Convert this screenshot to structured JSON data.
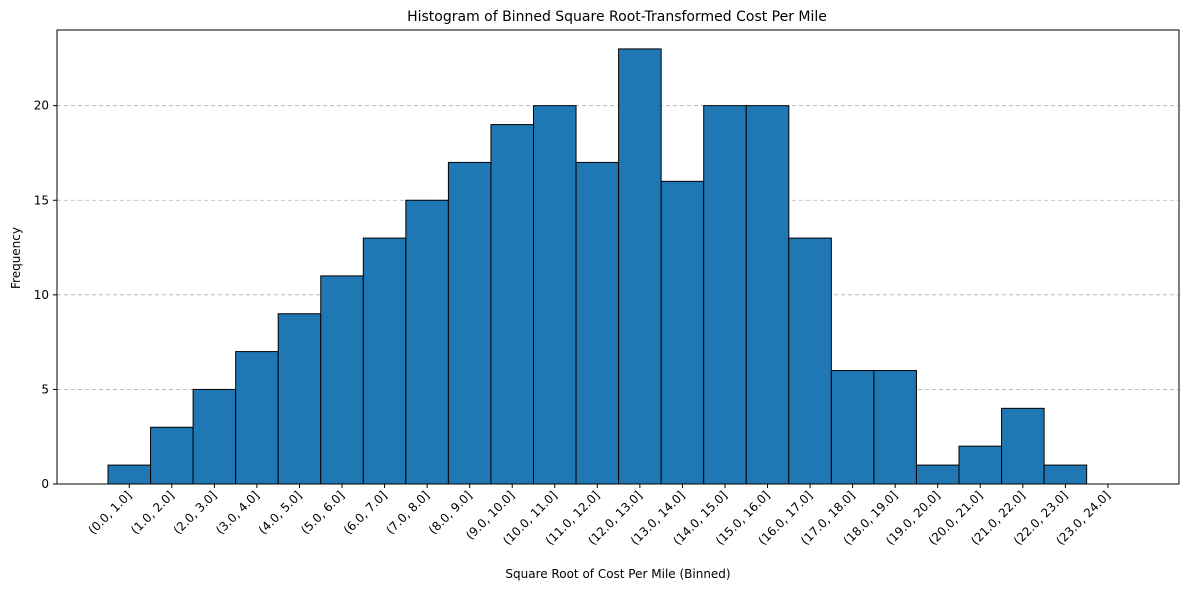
{
  "chart_data": {
    "type": "bar",
    "title": "Histogram of Binned Square Root-Transformed Cost Per Mile",
    "xlabel": "Square Root of Cost Per Mile (Binned)",
    "ylabel": "Frequency",
    "categories": [
      "(0.0, 1.0]",
      "(1.0, 2.0]",
      "(2.0, 3.0]",
      "(3.0, 4.0]",
      "(4.0, 5.0]",
      "(5.0, 6.0]",
      "(6.0, 7.0]",
      "(7.0, 8.0]",
      "(8.0, 9.0]",
      "(9.0, 10.0]",
      "(10.0, 11.0]",
      "(11.0, 12.0]",
      "(12.0, 13.0]",
      "(13.0, 14.0]",
      "(14.0, 15.0]",
      "(15.0, 16.0]",
      "(16.0, 17.0]",
      "(17.0, 18.0]",
      "(18.0, 19.0]",
      "(19.0, 20.0]",
      "(20.0, 21.0]",
      "(21.0, 22.0]",
      "(22.0, 23.0]",
      "(23.0, 24.0]"
    ],
    "values": [
      1,
      3,
      5,
      7,
      9,
      11,
      13,
      15,
      17,
      19,
      20,
      17,
      23,
      16,
      20,
      20,
      13,
      6,
      6,
      1,
      2,
      4,
      1,
      0
    ],
    "ylim": [
      0,
      24
    ],
    "yticks": [
      0,
      5,
      10,
      15,
      20
    ],
    "grid": "y-dashed",
    "bar_color": "#1f77b4",
    "edge_color": "#000000",
    "grid_color": "#b0b0b0"
  }
}
